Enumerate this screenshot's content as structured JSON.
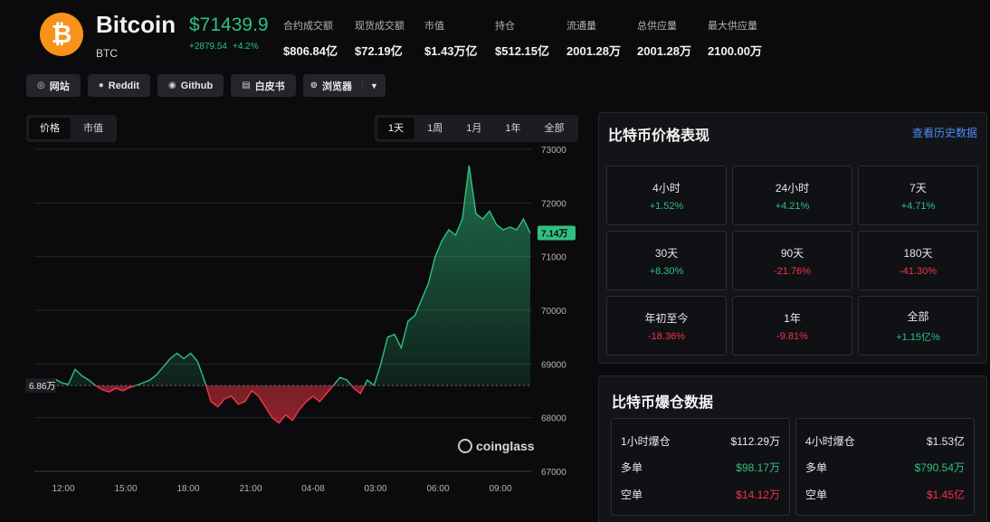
{
  "coin": {
    "logo_symbol": "₿",
    "name": "Bitcoin",
    "symbol": "BTC",
    "price": "$71439.9",
    "change_abs": "+2879.54",
    "change_pct": "+4.2%"
  },
  "stats": [
    {
      "label": "合约成交额",
      "value": "$806.84亿"
    },
    {
      "label": "现货成交额",
      "value": "$72.19亿"
    },
    {
      "label": "市值",
      "value": "$1.43万亿"
    },
    {
      "label": "持仓",
      "value": "$512.15亿"
    },
    {
      "label": "流通量",
      "value": "2001.28万"
    },
    {
      "label": "总供应量",
      "value": "2001.28万"
    },
    {
      "label": "最大供应量",
      "value": "2100.00万"
    }
  ],
  "links": [
    {
      "label": "网站",
      "icon": "globe-icon",
      "glyph": "◎"
    },
    {
      "label": "Reddit",
      "icon": "reddit-icon",
      "glyph": "●"
    },
    {
      "label": "Github",
      "icon": "github-icon",
      "glyph": "◉"
    },
    {
      "label": "白皮书",
      "icon": "document-icon",
      "glyph": "▤"
    },
    {
      "label": "浏览器",
      "icon": "search-icon",
      "glyph": "⊚"
    }
  ],
  "chart_tabs": [
    "价格",
    "市值"
  ],
  "range_tabs": [
    "1天",
    "1周",
    "1月",
    "1年",
    "全部"
  ],
  "chart_watermark": "coinglass",
  "chart_data": {
    "type": "area",
    "x_ticks": [
      "12:00",
      "15:00",
      "18:00",
      "21:00",
      "04-08",
      "03:00",
      "06:00",
      "09:00"
    ],
    "y_ticks": [
      73000,
      72000,
      71000,
      70000,
      69000,
      68000,
      67000
    ],
    "ylim": [
      67000,
      73000
    ],
    "baseline_label": "6.86万",
    "baseline_value": 68600,
    "current_label": "7.14万",
    "current_value": 71440,
    "series": [
      {
        "values": [
          68700,
          68720,
          68650,
          68620,
          68900,
          68780,
          68700,
          68600,
          68520,
          68480,
          68550,
          68500,
          68560,
          68600,
          68650,
          68700,
          68800,
          68950,
          69100,
          69200,
          69100,
          69200,
          69050,
          68700,
          68300,
          68200,
          68350,
          68400,
          68250,
          68300,
          68500,
          68400,
          68200,
          68000,
          67900,
          68050,
          67950,
          68150,
          68300,
          68400,
          68300,
          68450,
          68600,
          68750,
          68700,
          68550,
          68450,
          68700,
          68600,
          69000,
          69500,
          69550,
          69300,
          69800,
          69900,
          70200,
          70500,
          71000,
          71300,
          71500,
          71400,
          71700,
          72700,
          71800,
          71700,
          71850,
          71600,
          71500,
          71550,
          71500,
          71700,
          71440
        ]
      }
    ]
  },
  "perf_panel": {
    "title": "比特币价格表现",
    "history_link": "查看历史数据",
    "cells": [
      {
        "period": "4小时",
        "value": "+1.52%",
        "dir": "up"
      },
      {
        "period": "24小时",
        "value": "+4.21%",
        "dir": "up"
      },
      {
        "period": "7天",
        "value": "+4.71%",
        "dir": "up"
      },
      {
        "period": "30天",
        "value": "+8.30%",
        "dir": "up"
      },
      {
        "period": "90天",
        "value": "-21.76%",
        "dir": "down"
      },
      {
        "period": "180天",
        "value": "-41.30%",
        "dir": "down"
      },
      {
        "period": "年初至今",
        "value": "-18.36%",
        "dir": "down"
      },
      {
        "period": "1年",
        "value": "-9.81%",
        "dir": "down"
      },
      {
        "period": "全部",
        "value": "+1.15亿%",
        "dir": "up"
      }
    ]
  },
  "liq_panel": {
    "title": "比特币爆仓数据",
    "boxes": [
      {
        "label": "1小时爆仓",
        "total": "$112.29万",
        "long_label": "多单",
        "long": "$98.17万",
        "short_label": "空单",
        "short": "$14.12万"
      },
      {
        "label": "4小时爆仓",
        "total": "$1.53亿",
        "long_label": "多单",
        "long": "$790.54万",
        "short_label": "空单",
        "short": "$1.45亿"
      }
    ]
  },
  "colors": {
    "up": "#2fc07f",
    "down": "#f23645",
    "accent": "#f7931a",
    "link": "#4d8cf5"
  }
}
